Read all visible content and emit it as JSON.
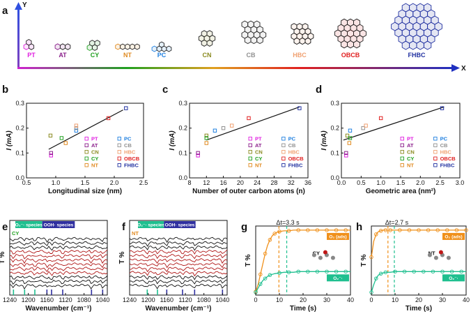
{
  "figure": {
    "panel_letters": [
      "a",
      "b",
      "c",
      "d",
      "e",
      "f",
      "g",
      "h"
    ],
    "axes_a": {
      "y": "Y",
      "x": "X"
    }
  },
  "molecules": [
    {
      "label": "PT",
      "color": "#e020e0",
      "rings": 3
    },
    {
      "label": "AT",
      "color": "#8a1f8a",
      "rings": 3
    },
    {
      "label": "CY",
      "color": "#20a020",
      "rings": 4
    },
    {
      "label": "NT",
      "color": "#e08a20",
      "rings": 5
    },
    {
      "label": "PC",
      "color": "#2080e0",
      "rings": 5
    },
    {
      "label": "CN",
      "color": "#8a8a20",
      "rings": 7
    },
    {
      "label": "CB",
      "color": "#909090",
      "rings": 13
    },
    {
      "label": "HBC",
      "color": "#f0a070",
      "rings": 13
    },
    {
      "label": "OBCB",
      "color": "#e02020",
      "rings": 19
    },
    {
      "label": "FHBC",
      "color": "#2030a0",
      "rings": 37
    }
  ],
  "chart_data": [
    {
      "panel": "b",
      "type": "scatter",
      "xlabel": "Longitudinal size (nm)",
      "ylabel": "I (mA)",
      "xlim": [
        0.5,
        2.5
      ],
      "ylim": [
        0.0,
        0.3
      ],
      "xticks": [
        "0.5",
        "1.0",
        "1.5",
        "2.0",
        "2.5"
      ],
      "yticks": [
        "0.0",
        "0.1",
        "0.2",
        "0.3"
      ],
      "points": [
        {
          "name": "PT",
          "x": 0.92,
          "y": 0.09
        },
        {
          "name": "AT",
          "x": 0.92,
          "y": 0.1
        },
        {
          "name": "CN",
          "x": 0.91,
          "y": 0.17
        },
        {
          "name": "CY",
          "x": 1.1,
          "y": 0.16
        },
        {
          "name": "NT",
          "x": 1.17,
          "y": 0.14
        },
        {
          "name": "PC",
          "x": 1.35,
          "y": 0.19
        },
        {
          "name": "CB",
          "x": 1.35,
          "y": 0.2
        },
        {
          "name": "HBC",
          "x": 1.35,
          "y": 0.21
        },
        {
          "name": "OBCB",
          "x": 1.9,
          "y": 0.24
        },
        {
          "name": "FHBC",
          "x": 2.2,
          "y": 0.28
        }
      ],
      "fit": [
        [
          0.88,
          0.115
        ],
        [
          2.15,
          0.273
        ]
      ]
    },
    {
      "panel": "c",
      "type": "scatter",
      "xlabel": "Number of outer carbon atoms (n)",
      "ylabel": "I (mA)",
      "xlim": [
        8,
        36
      ],
      "ylim": [
        0.0,
        0.3
      ],
      "xticks": [
        "8",
        "12",
        "16",
        "20",
        "24",
        "28",
        "32",
        "36"
      ],
      "yticks": [
        "0.0",
        "0.1",
        "0.2",
        "0.3"
      ],
      "points": [
        {
          "name": "PT",
          "x": 10,
          "y": 0.09
        },
        {
          "name": "AT",
          "x": 10,
          "y": 0.1
        },
        {
          "name": "CN",
          "x": 12,
          "y": 0.17
        },
        {
          "name": "CY",
          "x": 12,
          "y": 0.16
        },
        {
          "name": "NT",
          "x": 12,
          "y": 0.14
        },
        {
          "name": "PC",
          "x": 14,
          "y": 0.19
        },
        {
          "name": "CB",
          "x": 16,
          "y": 0.2
        },
        {
          "name": "HBC",
          "x": 18,
          "y": 0.21
        },
        {
          "name": "OBCB",
          "x": 22,
          "y": 0.24
        },
        {
          "name": "FHBC",
          "x": 34,
          "y": 0.28
        }
      ],
      "fit": [
        [
          12,
          0.152
        ],
        [
          34,
          0.285
        ]
      ]
    },
    {
      "panel": "d",
      "type": "scatter",
      "xlabel": "Geometric area (nm²)",
      "ylabel": "I (mA)",
      "xlim": [
        0.0,
        3.0
      ],
      "ylim": [
        0.0,
        0.3
      ],
      "xticks": [
        "0.0",
        "0.5",
        "1.0",
        "1.5",
        "2.0",
        "2.5",
        "3.0"
      ],
      "yticks": [
        "0.0",
        "0.1",
        "0.2",
        "0.3"
      ],
      "points": [
        {
          "name": "PT",
          "x": 0.12,
          "y": 0.09
        },
        {
          "name": "AT",
          "x": 0.12,
          "y": 0.1
        },
        {
          "name": "CN",
          "x": 0.15,
          "y": 0.17
        },
        {
          "name": "CY",
          "x": 0.22,
          "y": 0.16
        },
        {
          "name": "NT",
          "x": 0.2,
          "y": 0.14
        },
        {
          "name": "PC",
          "x": 0.22,
          "y": 0.19
        },
        {
          "name": "CB",
          "x": 0.55,
          "y": 0.2
        },
        {
          "name": "HBC",
          "x": 0.62,
          "y": 0.21
        },
        {
          "name": "OBCB",
          "x": 1.0,
          "y": 0.24
        },
        {
          "name": "FHBC",
          "x": 2.55,
          "y": 0.28
        }
      ],
      "fit": [
        [
          0.05,
          0.152
        ],
        [
          2.6,
          0.285
        ]
      ]
    },
    {
      "panel": "e",
      "type": "line",
      "molecule": "CY",
      "ylabel": "T %",
      "xlabel": "Wavenumber (cm⁻¹)",
      "xlim": [
        1240,
        1030
      ],
      "xticks": [
        "1240",
        "1200",
        "1160",
        "1120",
        "1080",
        "1040"
      ],
      "bands": [
        {
          "label": "O₂⁻· species",
          "color": "#1fbf8f",
          "from": 1228,
          "to": 1170
        },
        {
          "label": "OOH· species",
          "color": "#3030a0",
          "from": 1170,
          "to": 1100
        }
      ],
      "spectra_count": 12,
      "markers": [
        1232,
        1208,
        1186,
        1160,
        1150,
        1126,
        1064,
        1040
      ]
    },
    {
      "panel": "f",
      "type": "line",
      "molecule": "NT",
      "ylabel": "T %",
      "xlabel": "Wavenumber (cm⁻¹)",
      "xlim": [
        1240,
        1030
      ],
      "xticks": [
        "1240",
        "1200",
        "1160",
        "1120",
        "1080",
        "1040"
      ],
      "bands": [
        {
          "label": "O₂⁻· species",
          "color": "#1fbf8f",
          "from": 1222,
          "to": 1166
        },
        {
          "label": "OOH· species",
          "color": "#3030a0",
          "from": 1166,
          "to": 1098
        }
      ],
      "spectra_count": 12,
      "markers": [
        1202,
        1180,
        1160,
        1126,
        1100,
        1040
      ]
    },
    {
      "panel": "g",
      "type": "line",
      "molecule": "CY",
      "ylabel": "T %",
      "xlabel": "Time (s)",
      "xlim": [
        0,
        40
      ],
      "xticks": [
        "0",
        "10",
        "20",
        "30",
        "40"
      ],
      "delta_label": "Δt=3.3 s",
      "t_o2ads": 9.8,
      "t_o2rad": 13.1,
      "series": [
        {
          "name": "O₂ (ads)",
          "color": "#f0901a",
          "x": [
            0,
            1,
            2,
            3,
            4,
            5,
            6,
            7,
            8,
            9,
            10,
            12,
            14,
            16,
            18,
            20,
            22,
            24,
            26,
            28,
            30,
            32,
            34,
            36,
            38,
            40
          ],
          "y": [
            0.05,
            0.15,
            0.3,
            0.45,
            0.6,
            0.72,
            0.8,
            0.86,
            0.89,
            0.91,
            0.92,
            0.93,
            0.93,
            0.94,
            0.94,
            0.94,
            0.94,
            0.94,
            0.94,
            0.94,
            0.94,
            0.94,
            0.94,
            0.94,
            0.94,
            0.94
          ]
        },
        {
          "name": "O₂⁻·",
          "color": "#1fbf8f",
          "x": [
            0,
            1,
            2,
            3,
            4,
            5,
            6,
            8,
            10,
            12,
            14,
            16,
            18,
            20,
            22,
            24,
            26,
            28,
            30,
            32,
            34,
            36,
            38,
            40
          ],
          "y": [
            0.04,
            0.1,
            0.16,
            0.21,
            0.24,
            0.27,
            0.29,
            0.31,
            0.32,
            0.33,
            0.33,
            0.33,
            0.34,
            0.34,
            0.34,
            0.34,
            0.34,
            0.34,
            0.34,
            0.34,
            0.34,
            0.34,
            0.34,
            0.34
          ]
        }
      ]
    },
    {
      "panel": "h",
      "type": "line",
      "molecule": "NT",
      "ylabel": "T %",
      "xlabel": "Time (s)",
      "xlim": [
        0,
        40
      ],
      "xticks": [
        "0",
        "10",
        "20",
        "30",
        "40"
      ],
      "delta_label": "Δt=2.7 s",
      "t_o2ads": 7.0,
      "t_o2rad": 9.7,
      "series": [
        {
          "name": "O₂ (ads)",
          "color": "#f0901a",
          "x": [
            0,
            1,
            2,
            3,
            4,
            5,
            6,
            7,
            8,
            10,
            12,
            14,
            16,
            18,
            20,
            22,
            24,
            26,
            28,
            30,
            32,
            34,
            36,
            38,
            40
          ],
          "y": [
            0.55,
            0.78,
            0.88,
            0.92,
            0.93,
            0.94,
            0.94,
            0.94,
            0.94,
            0.94,
            0.94,
            0.94,
            0.94,
            0.94,
            0.94,
            0.94,
            0.94,
            0.94,
            0.94,
            0.94,
            0.94,
            0.94,
            0.94,
            0.94,
            0.94
          ]
        },
        {
          "name": "O₂⁻·",
          "color": "#1fbf8f",
          "x": [
            0,
            1,
            2,
            3,
            4,
            5,
            6,
            8,
            10,
            12,
            14,
            16,
            18,
            20,
            22,
            24,
            26,
            28,
            30,
            32,
            34,
            36,
            38,
            40
          ],
          "y": [
            0.04,
            0.15,
            0.24,
            0.29,
            0.31,
            0.32,
            0.33,
            0.33,
            0.34,
            0.34,
            0.34,
            0.34,
            0.34,
            0.34,
            0.34,
            0.34,
            0.34,
            0.34,
            0.34,
            0.34,
            0.34,
            0.34,
            0.34,
            0.34
          ]
        }
      ]
    }
  ]
}
